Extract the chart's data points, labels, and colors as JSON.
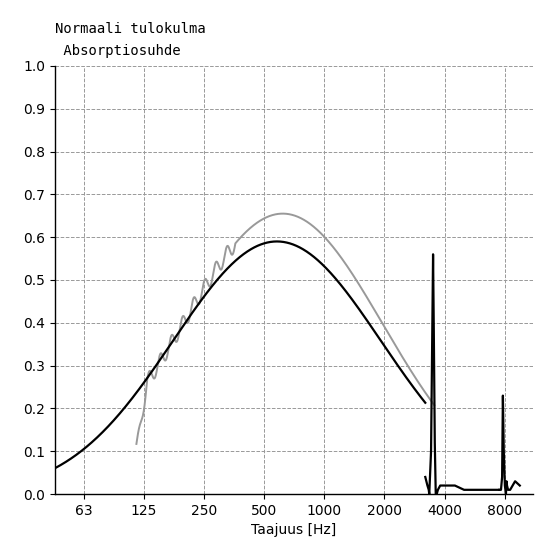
{
  "title_line1": "Normaali tulokulma",
  "title_line2": " Absorptiosuhde",
  "xlabel": "Taajuus [Hz]",
  "background_color": "#ffffff",
  "grid_color": "#999999",
  "xticks": [
    63,
    125,
    250,
    500,
    1000,
    2000,
    4000,
    8000
  ],
  "xtick_labels": [
    "63",
    "125",
    "250",
    "500",
    "1000",
    "2000",
    "4000",
    "8000"
  ],
  "ylim": [
    0.0,
    1.0
  ],
  "yticks": [
    0.0,
    0.1,
    0.2,
    0.3,
    0.4,
    0.5,
    0.6,
    0.7,
    0.8,
    0.9,
    1.0
  ],
  "black_curve_color": "#000000",
  "gray_curve_color": "#999999",
  "black_linewidth": 1.6,
  "gray_linewidth": 1.4,
  "font_size": 10,
  "title_font_size": 10
}
